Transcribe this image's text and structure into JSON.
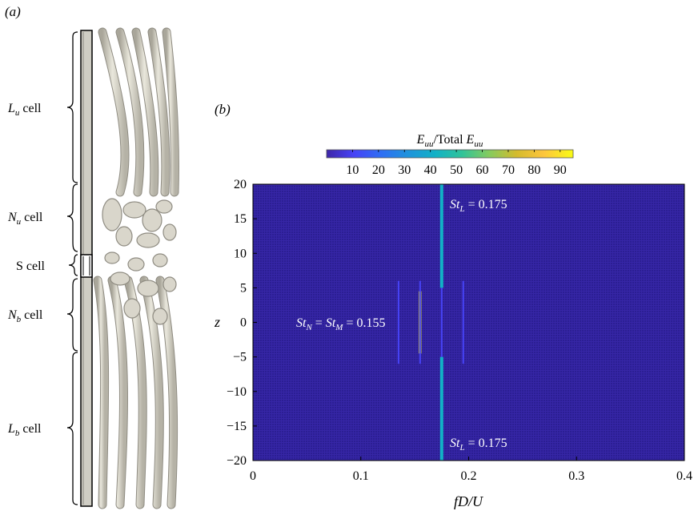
{
  "panel_a": {
    "label": "(a)",
    "cells": [
      {
        "sym": "L",
        "sub": "u",
        "text": "cell"
      },
      {
        "sym": "N",
        "sub": "u",
        "text": "cell"
      },
      {
        "sym": "S",
        "sub": "",
        "text": "cell"
      },
      {
        "sym": "N",
        "sub": "b",
        "text": "cell"
      },
      {
        "sym": "L",
        "sub": "b",
        "text": "cell"
      }
    ]
  },
  "panel_b": {
    "label": "(b)",
    "colorbar": {
      "label_sym": "E",
      "label_sub": "uu",
      "label_mid": "/Total ",
      "ticks": [
        10,
        20,
        30,
        40,
        50,
        60,
        70,
        80,
        90
      ],
      "range": [
        0,
        95
      ],
      "colors": [
        "#3e26a8",
        "#4743f6",
        "#2f6ef4",
        "#1f93dc",
        "#12b1c6",
        "#30c399",
        "#85cb5e",
        "#d4bb2e",
        "#fdc53d",
        "#f9fb15"
      ]
    },
    "annotations": [
      {
        "id": "stl-top",
        "sym": "St",
        "sub": "L",
        "text": " = 0.175"
      },
      {
        "id": "stn-stm",
        "sym1": "St",
        "sub1": "N",
        "mid": " = ",
        "sym2": "St",
        "sub2": "M",
        "text": " = 0.155"
      },
      {
        "id": "stl-bottom",
        "sym": "St",
        "sub": "L",
        "text": " = 0.175"
      }
    ]
  },
  "chart_data": {
    "type": "heatmap",
    "xlabel": "fD/U",
    "ylabel": "z",
    "xlim": [
      0,
      0.4
    ],
    "ylim": [
      -20,
      20
    ],
    "xticks": [
      0,
      0.1,
      0.2,
      0.3,
      0.4
    ],
    "yticks": [
      20,
      15,
      10,
      5,
      0,
      -5,
      -10,
      -15,
      -20
    ],
    "grid": true,
    "background_value": 1,
    "features": [
      {
        "x": 0.175,
        "z": [
          -20,
          20
        ],
        "peak": 45,
        "note": "St_L = 0.175"
      },
      {
        "x": 0.155,
        "z": [
          -4.5,
          4.5
        ],
        "peak": 92,
        "note": "St_N = St_M = 0.155"
      },
      {
        "x": 0.155,
        "z": [
          -6,
          6
        ],
        "peak": 12
      },
      {
        "x": 0.135,
        "z": [
          -6,
          6
        ],
        "peak": 6
      },
      {
        "x": 0.195,
        "z": [
          -6,
          6
        ],
        "peak": 6
      }
    ]
  }
}
